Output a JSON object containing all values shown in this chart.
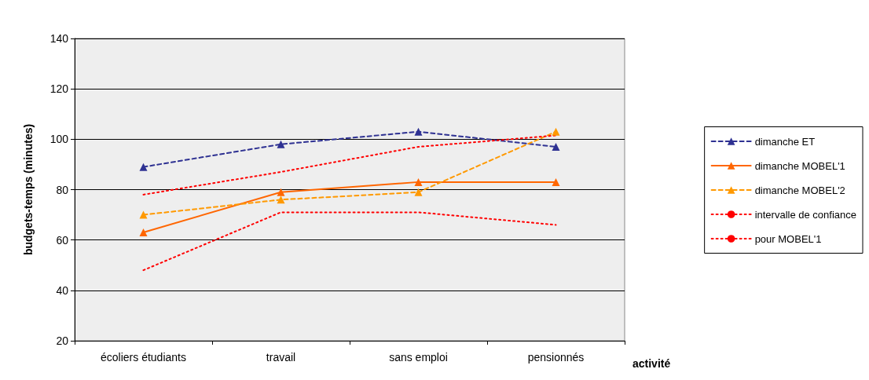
{
  "chart_data": {
    "type": "line",
    "xlabel": "activité",
    "ylabel": "budgets-temps (minutes)",
    "categories": [
      "écoliers étudiants",
      "travail",
      "sans emploi",
      "pensionnés"
    ],
    "series": [
      {
        "name": "dimanche ET",
        "color": "#2e3192",
        "values": [
          89,
          98,
          103,
          97
        ],
        "line_style": "dashed",
        "marker": "triangle"
      },
      {
        "name": "dimanche MOBEL'1",
        "color": "#ff6600",
        "values": [
          63,
          79,
          83,
          83
        ],
        "line_style": "solid",
        "marker": "triangle"
      },
      {
        "name": "dimanche MOBEL'2",
        "color": "#ff9900",
        "values": [
          70,
          76,
          79,
          103
        ],
        "line_style": "dashed",
        "marker": "triangle"
      },
      {
        "name": "intervalle de confiance",
        "color": "#ff0000",
        "values": [
          78,
          87,
          97,
          101.5
        ],
        "line_style": "dotted",
        "marker": "none"
      },
      {
        "name": "pour MOBEL'1",
        "color": "#ff0000",
        "values": [
          48,
          71,
          71,
          66
        ],
        "line_style": "dotted",
        "marker": "none"
      }
    ],
    "ylim": [
      20,
      140
    ],
    "yticks": [
      20,
      40,
      60,
      80,
      100,
      120,
      140
    ],
    "grid": "y",
    "legend": "right"
  }
}
